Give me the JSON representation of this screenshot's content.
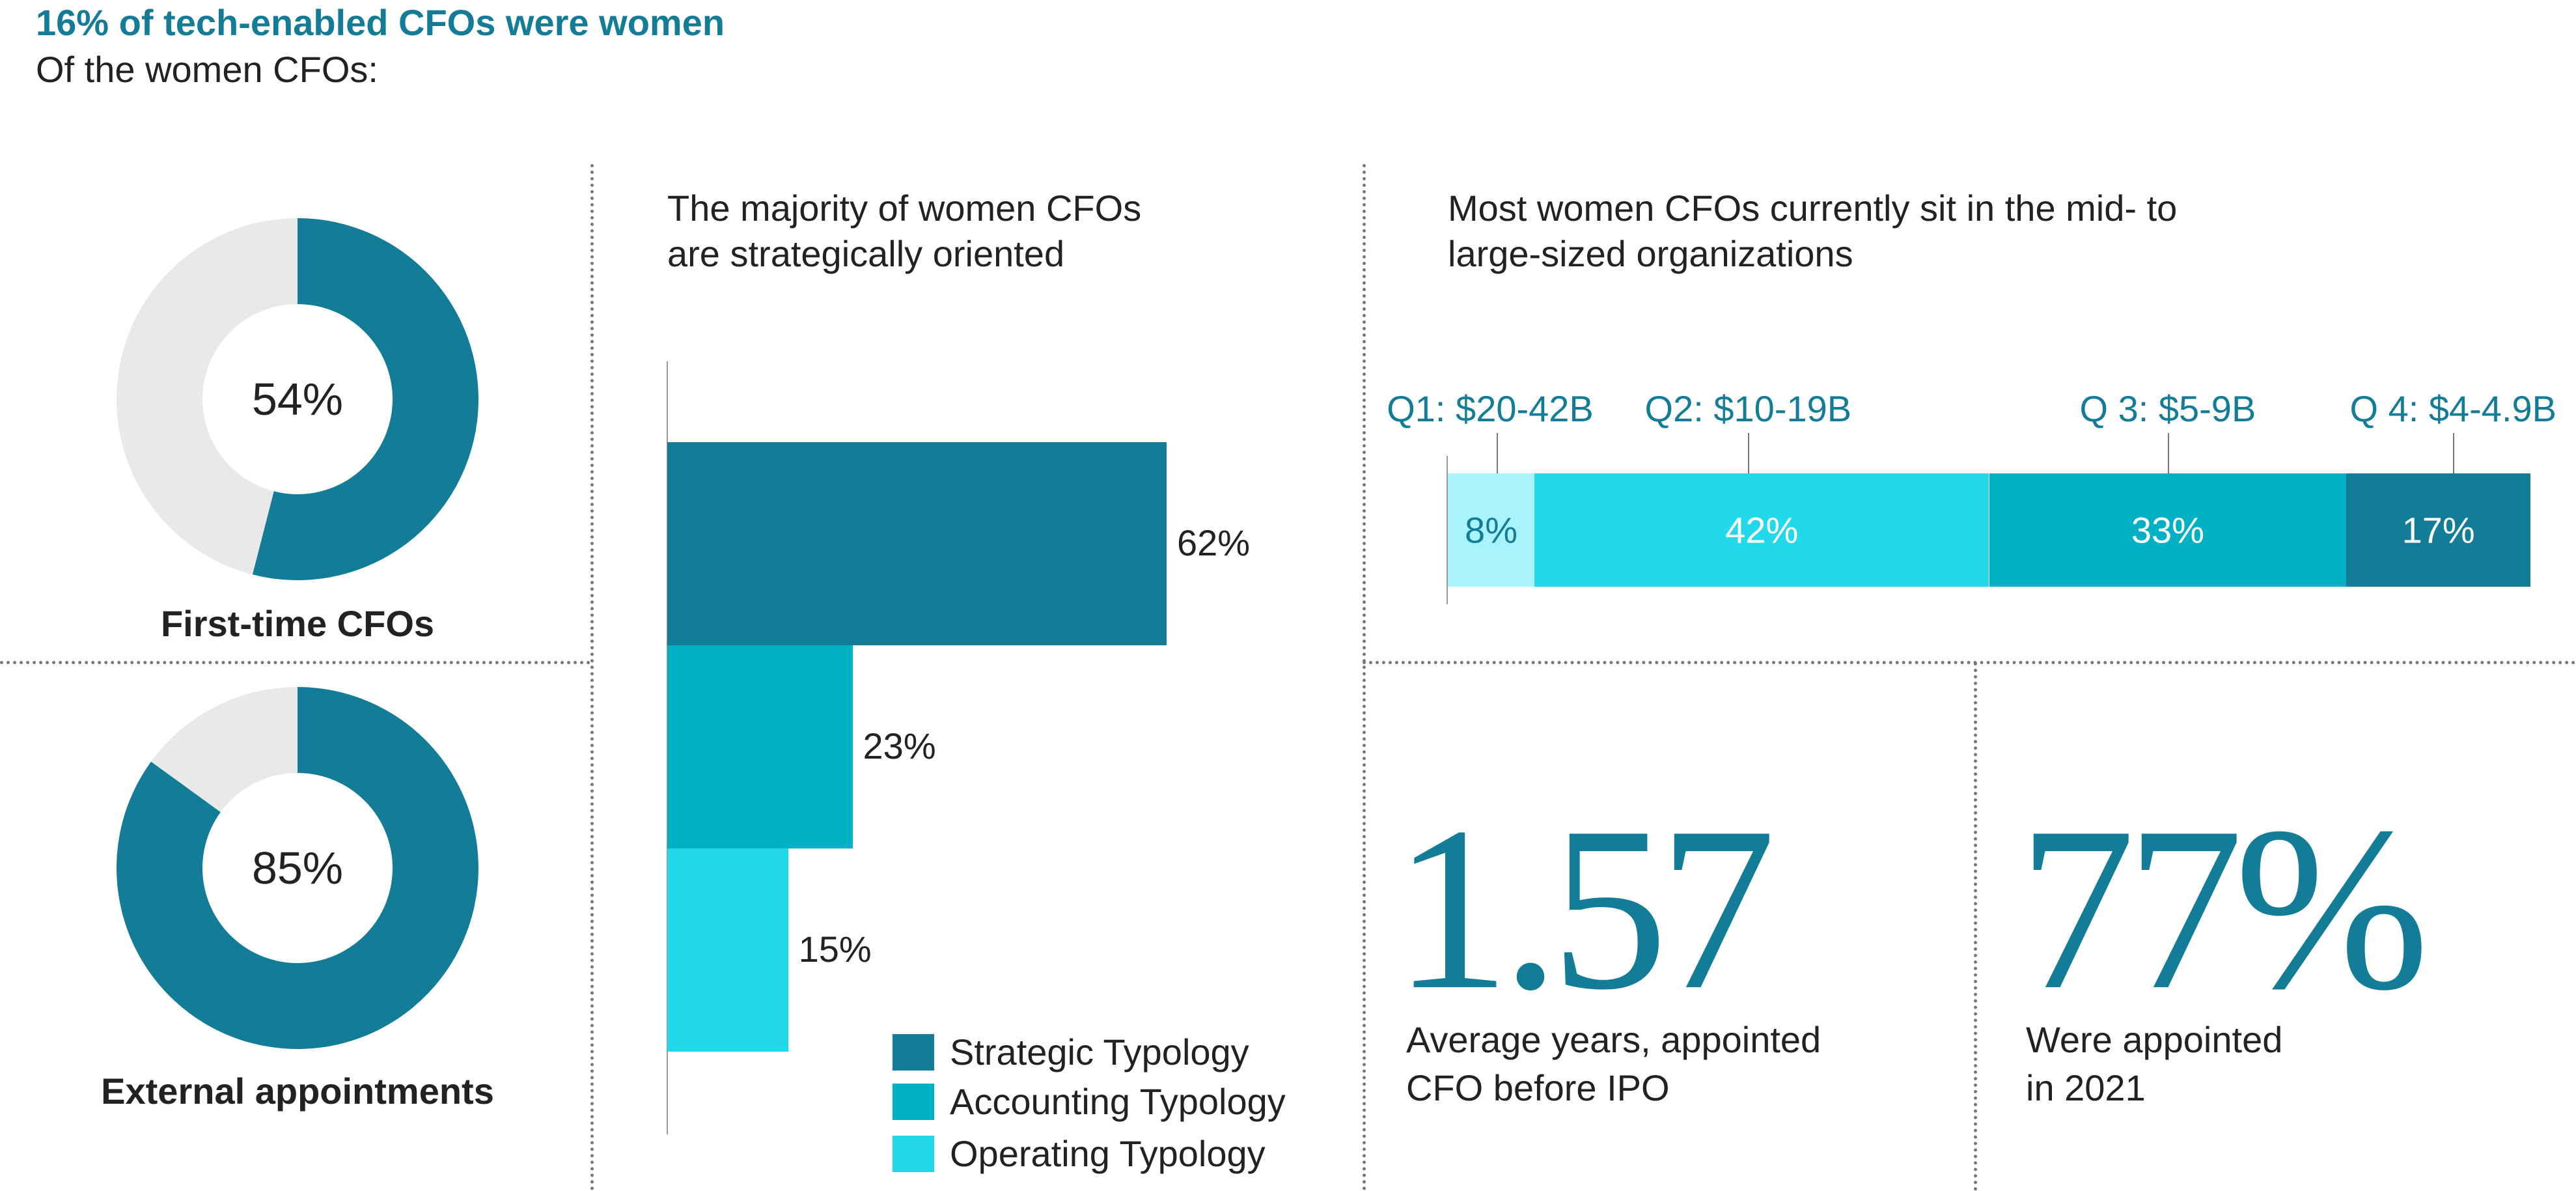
{
  "header": {
    "title": "16% of tech-enabled CFOs were women",
    "subtitle": "Of the women CFOs:"
  },
  "colors": {
    "dark_teal": "#137c96",
    "teal": "#00b1c6",
    "cyan": "#21d9eb",
    "light_cyan": "#a9f4fc",
    "light_gray": "#eae9ea",
    "text": "#222222"
  },
  "chart_data": [
    {
      "type": "pie",
      "variant": "donut",
      "title": "First-time CFOs",
      "center_label": "54%",
      "values": [
        54,
        46
      ],
      "labels": [
        "First-time CFOs",
        "Other"
      ]
    },
    {
      "type": "pie",
      "variant": "donut",
      "title": "External appointments",
      "center_label": "85%",
      "values": [
        85,
        15
      ],
      "labels": [
        "External appointments",
        "Other"
      ]
    },
    {
      "type": "bar",
      "orientation": "horizontal",
      "title": "The majority of women CFOs\nare strategically oriented",
      "categories": [
        "Strategic Typology",
        "Accounting Typology",
        "Operating Typology"
      ],
      "values": [
        62,
        23,
        15
      ],
      "value_labels": [
        "62%",
        "23%",
        "15%"
      ],
      "xlim": [
        0,
        62
      ],
      "legend": [
        "Strategic Typology",
        "Accounting Typology",
        "Operating Typology"
      ],
      "legend_position": "bottom-right"
    },
    {
      "type": "bar",
      "variant": "stacked-horizontal",
      "title": "Most women CFOs currently sit in the mid- to\nlarge-sized organizations",
      "categories": [
        "Q1: $20-42B",
        "Q2: $10-19B",
        "Q 3: $5-9B",
        "Q 4: $4-4.9B"
      ],
      "values": [
        8,
        42,
        33,
        17
      ],
      "value_labels": [
        "8%",
        "42%",
        "33%",
        "17%"
      ]
    }
  ],
  "stats": [
    {
      "value": "1.57",
      "caption": "Average years, appointed\nCFO before IPO"
    },
    {
      "value": "77%",
      "caption": "Were appointed\nin 2021"
    }
  ]
}
